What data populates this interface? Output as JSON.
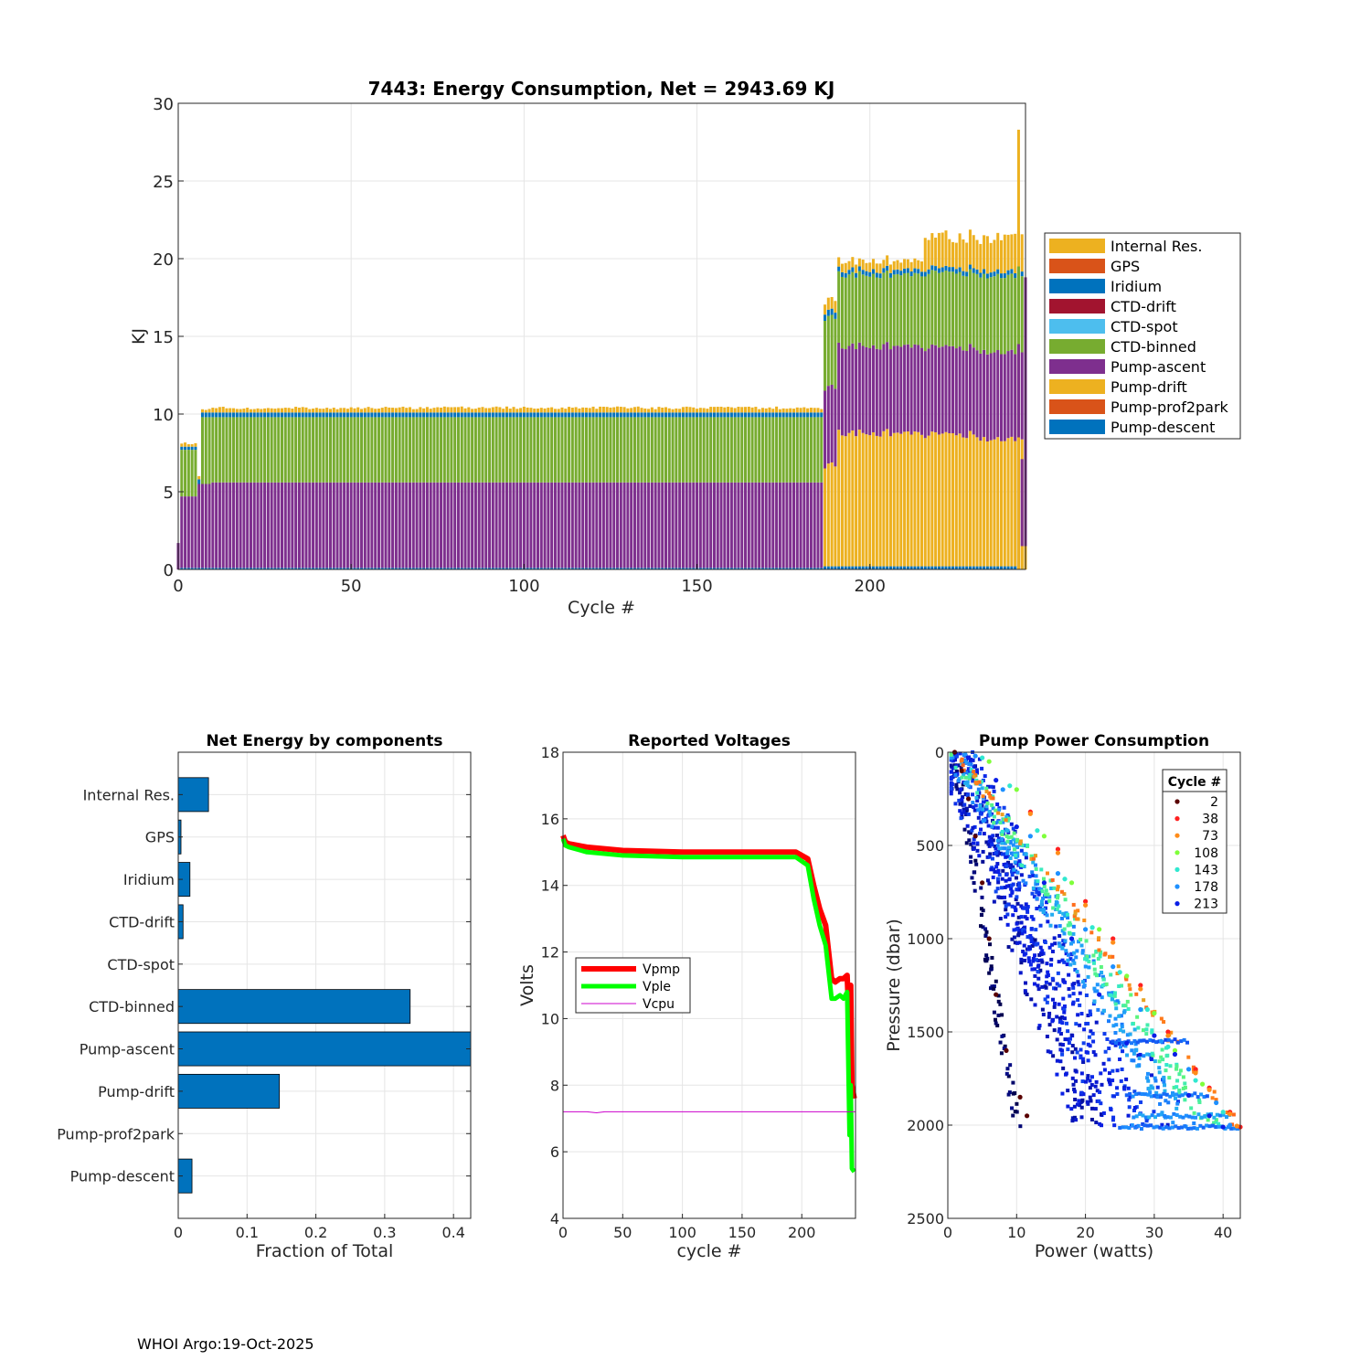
{
  "colors": {
    "int_res": "#EDB120",
    "gps": "#D95319",
    "iridium": "#0072BD",
    "ctd_drift": "#A2142F",
    "ctd_spot": "#4DBEEE",
    "ctd_binned": "#77AC30",
    "pump_ascent": "#7E2F8E",
    "pump_drift": "#EDB120",
    "pump_prof2park": "#D95319",
    "pump_descent": "#0072BD",
    "grid": "#e5e5e5",
    "axis": "#262626",
    "bar_h": "#0072BD",
    "vpmp": "#ff0000",
    "vple": "#00ff00",
    "vcpu": "#cc00cc"
  },
  "footer": "WHOI Argo:19-Oct-2025",
  "chart_data": [
    {
      "id": "energy",
      "type": "stacked-bar",
      "title": "7443: Energy Consumption,  Net = 2943.69 KJ",
      "xlabel": "Cycle #",
      "ylabel": "KJ",
      "xlim": [
        0,
        245
      ],
      "ylim": [
        0,
        30
      ],
      "xticks": [
        "0",
        "50",
        "100",
        "150",
        "200"
      ],
      "yticks": [
        "0",
        "5",
        "10",
        "15",
        "20",
        "25",
        "30"
      ],
      "legend": [
        "Internal Res.",
        "GPS",
        "Iridium",
        "CTD-drift",
        "CTD-spot",
        "CTD-binned",
        "Pump-ascent",
        "Pump-drift",
        "Pump-prof2park",
        "Pump-descent"
      ],
      "segments": [
        {
          "x_from": 1,
          "x_to": 5,
          "pump_descent": 0.1,
          "pump_drift": 0,
          "pump_ascent": 4.6,
          "ctd_binned": 3.0,
          "iridium": 0.2,
          "int_res": 0.2,
          "total": 8.0
        },
        {
          "x_from": 6,
          "x_to": 9,
          "pump_descent": 0.1,
          "pump_drift": 0,
          "pump_ascent": 5.4,
          "ctd_binned": 4.3,
          "iridium": 0.3,
          "int_res": 0.2,
          "total": 10.2
        },
        {
          "x_from": 10,
          "x_to": 186,
          "pump_descent": 0.1,
          "pump_drift": 0,
          "pump_ascent": 5.5,
          "ctd_binned": 4.2,
          "iridium": 0.3,
          "int_res": 0.3,
          "total": 10.4
        },
        {
          "x_from": 187,
          "x_to": 190,
          "pump_descent": 0.2,
          "pump_drift": 6.5,
          "pump_ascent": 5.0,
          "ctd_binned": 4.5,
          "iridium": 0.4,
          "int_res": 0.7,
          "total": 17.3
        },
        {
          "x_from": 191,
          "x_to": 215,
          "pump_descent": 0.2,
          "pump_drift": 8.6,
          "pump_ascent": 5.6,
          "ctd_binned": 4.6,
          "iridium": 0.3,
          "int_res": 0.6,
          "total": 19.9
        },
        {
          "x_from": 216,
          "x_to": 230,
          "pump_descent": 0.2,
          "pump_drift": 8.5,
          "pump_ascent": 5.6,
          "ctd_binned": 4.8,
          "iridium": 0.3,
          "int_res": 2.0,
          "total": 21.4
        },
        {
          "x_from": 231,
          "x_to": 244,
          "pump_descent": 0.2,
          "pump_drift": 8.2,
          "pump_ascent": 5.6,
          "ctd_binned": 4.9,
          "iridium": 0.3,
          "int_res": 2.2,
          "total": 21.4
        }
      ],
      "peak": {
        "x": 243,
        "total": 28.3
      }
    },
    {
      "id": "components",
      "type": "barh",
      "title": "Net Energy by components",
      "xlabel": "Fraction of Total",
      "xlim": [
        0,
        0.425
      ],
      "xticks": [
        "0",
        "0.1",
        "0.2",
        "0.3",
        "0.4"
      ],
      "categories": [
        "Internal Res.",
        "GPS",
        "Iridium",
        "CTD-drift",
        "CTD-spot",
        "CTD-binned",
        "Pump-ascent",
        "Pump-drift",
        "Pump-prof2park",
        "Pump-descent"
      ],
      "values": [
        0.044,
        0.004,
        0.017,
        0.007,
        0.0,
        0.337,
        0.43,
        0.147,
        0.0,
        0.02
      ]
    },
    {
      "id": "voltages",
      "type": "line",
      "title": "Reported Voltages",
      "xlabel": "cycle #",
      "ylabel": "Volts",
      "xlim": [
        0,
        245
      ],
      "ylim": [
        4,
        18
      ],
      "xticks": [
        "0",
        "50",
        "100",
        "150",
        "200"
      ],
      "yticks": [
        "4",
        "6",
        "8",
        "10",
        "12",
        "14",
        "16",
        "18"
      ],
      "series": [
        {
          "name": "Vpmp",
          "x": [
            0,
            2,
            5,
            20,
            50,
            100,
            150,
            195,
            205,
            210,
            215,
            220,
            225,
            228,
            232,
            235,
            238,
            240,
            241,
            242,
            244
          ],
          "y": [
            15.5,
            15.3,
            15.25,
            15.15,
            15.05,
            15.0,
            15.0,
            15.0,
            14.8,
            14.0,
            13.3,
            12.8,
            11.2,
            11.1,
            11.2,
            11.2,
            11.3,
            9.5,
            11.0,
            8.0,
            7.6
          ]
        },
        {
          "name": "Vple",
          "x": [
            0,
            2,
            5,
            20,
            50,
            100,
            150,
            195,
            205,
            210,
            215,
            220,
            225,
            228,
            232,
            235,
            238,
            240,
            241,
            242,
            244
          ],
          "y": [
            15.4,
            15.2,
            15.15,
            15.0,
            14.9,
            14.85,
            14.85,
            14.85,
            14.6,
            13.6,
            12.8,
            12.2,
            10.6,
            10.6,
            10.7,
            10.6,
            10.8,
            6.5,
            8.0,
            5.5,
            5.4
          ]
        },
        {
          "name": "Vcpu",
          "x": [
            0,
            20,
            28,
            35,
            245
          ],
          "y": [
            7.2,
            7.2,
            7.17,
            7.2,
            7.2
          ]
        }
      ]
    },
    {
      "id": "pump",
      "type": "scatter",
      "title": "Pump Power Consumption",
      "xlabel": "Power (watts)",
      "ylabel": "Pressure (dbar)",
      "xlim": [
        0,
        42.5
      ],
      "ylim": [
        0,
        2500
      ],
      "y_reversed": true,
      "xticks": [
        "0",
        "10",
        "20",
        "30",
        "40"
      ],
      "yticks": [
        "0",
        "500",
        "1000",
        "1500",
        "2000",
        "2500"
      ],
      "legend_title": "Cycle #",
      "series": [
        {
          "name": "2",
          "color": "#5a0000",
          "points": [
            [
              1,
              0
            ],
            [
              2,
              100
            ],
            [
              3,
              250
            ],
            [
              4,
              450
            ],
            [
              5,
              700
            ],
            [
              6,
              1000
            ],
            [
              7,
              1300
            ],
            [
              8.5,
              1600
            ],
            [
              10.5,
              1850
            ],
            [
              11.5,
              1950
            ]
          ]
        },
        {
          "name": "38",
          "color": "#ff2020",
          "points": [
            [
              12,
              320
            ],
            [
              16,
              520
            ],
            [
              20,
              800
            ],
            [
              24,
              1000
            ],
            [
              28,
              1250
            ],
            [
              32,
              1500
            ],
            [
              36,
              1700
            ],
            [
              38,
              1800
            ],
            [
              41,
              1930
            ],
            [
              42.5,
              2010
            ]
          ]
        },
        {
          "name": "73",
          "color": "#ff8c1a",
          "points": [
            [
              12,
              330
            ],
            [
              16,
              540
            ],
            [
              20,
              820
            ],
            [
              24,
              1020
            ],
            [
              28,
              1270
            ],
            [
              32,
              1520
            ],
            [
              36,
              1720
            ],
            [
              38,
              1810
            ],
            [
              41,
              1940
            ],
            [
              42,
              2005
            ]
          ]
        },
        {
          "name": "108",
          "color": "#7fff3a",
          "points": [
            [
              6,
              50
            ],
            [
              10,
              200
            ],
            [
              14,
              450
            ],
            [
              18,
              700
            ],
            [
              22,
              950
            ],
            [
              26,
              1200
            ],
            [
              30,
              1400
            ],
            [
              33,
              1600
            ],
            [
              37,
              1780
            ]
          ]
        },
        {
          "name": "143",
          "color": "#30e8d0",
          "points": [
            [
              5,
              30
            ],
            [
              9,
              180
            ],
            [
              13,
              420
            ],
            [
              17,
              680
            ],
            [
              21,
              940
            ],
            [
              25,
              1180
            ],
            [
              29,
              1380
            ],
            [
              32,
              1580
            ],
            [
              36,
              1760
            ],
            [
              40,
              1930
            ]
          ]
        },
        {
          "name": "178",
          "color": "#1e90ff",
          "points": [
            [
              4,
              20
            ],
            [
              8,
              200
            ],
            [
              12,
              450
            ],
            [
              16,
              650
            ],
            [
              20,
              950
            ],
            [
              24,
              1150
            ],
            [
              28,
              1380
            ],
            [
              31,
              1550
            ],
            [
              35,
              1700
            ],
            [
              39,
              1880
            ],
            [
              41,
              2000
            ]
          ]
        },
        {
          "name": "213",
          "color": "#0a1ee6",
          "points": [
            [
              3,
              30
            ],
            [
              7,
              150
            ],
            [
              10,
              400
            ],
            [
              14,
              700
            ],
            [
              18,
              1000
            ],
            [
              22,
              1300
            ],
            [
              26,
              1560
            ],
            [
              30,
              1520
            ],
            [
              33,
              1620
            ],
            [
              35,
              1840
            ],
            [
              38,
              1950
            ],
            [
              40,
              2010
            ]
          ]
        }
      ],
      "cloud_color": "#000050"
    }
  ]
}
